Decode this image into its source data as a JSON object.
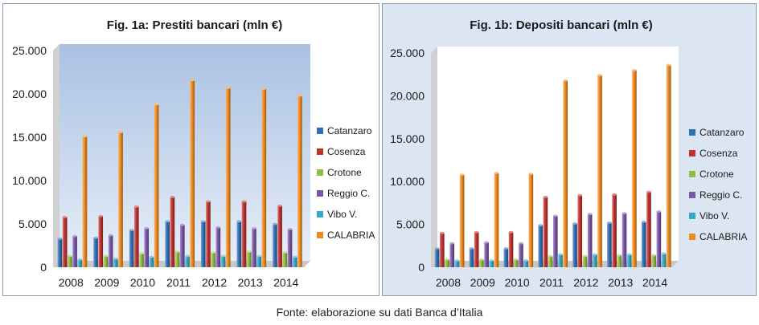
{
  "chart_data": [
    {
      "type": "bar",
      "title": "Fig. 1a: Prestiti bancari (mln €)",
      "categories": [
        "2008",
        "2009",
        "2010",
        "2011",
        "2012",
        "2013",
        "2014"
      ],
      "y_ticks": [
        "0",
        "5.000",
        "10.000",
        "15.000",
        "20.000",
        "25.000"
      ],
      "ylim": [
        0,
        25000
      ],
      "grid": false,
      "legend": "right",
      "series": [
        {
          "name": "Catanzaro",
          "color": "#2f6fb4",
          "values": [
            3300,
            3400,
            4300,
            5300,
            5300,
            5300,
            5000
          ]
        },
        {
          "name": "Cosenza",
          "color": "#c0312e",
          "values": [
            5800,
            5900,
            7000,
            8100,
            7600,
            7600,
            7100
          ]
        },
        {
          "name": "Crotone",
          "color": "#8fbf3e",
          "values": [
            1300,
            1300,
            1600,
            1800,
            1700,
            1800,
            1700
          ]
        },
        {
          "name": "Reggio C.",
          "color": "#7a55a8",
          "values": [
            3600,
            3700,
            4500,
            4900,
            4600,
            4500,
            4400
          ]
        },
        {
          "name": "Vibo V.",
          "color": "#35a9c8",
          "values": [
            900,
            1000,
            1200,
            1300,
            1300,
            1300,
            1200
          ]
        },
        {
          "name": "CALABRIA",
          "color": "#f08a1c",
          "values": [
            15100,
            15600,
            18800,
            21600,
            20700,
            20600,
            19800
          ]
        }
      ]
    },
    {
      "type": "bar",
      "title": "Fig. 1b: Depositi bancari (mln €)",
      "categories": [
        "2008",
        "2009",
        "2010",
        "2011",
        "2012",
        "2013",
        "2014"
      ],
      "y_ticks": [
        "0",
        "5.000",
        "10.000",
        "15.000",
        "20.000",
        "25.000"
      ],
      "ylim": [
        0,
        25000
      ],
      "grid": false,
      "legend": "right",
      "series": [
        {
          "name": "Catanzaro",
          "color": "#2f6fb4",
          "values": [
            2200,
            2200,
            2200,
            4900,
            5100,
            5200,
            5300
          ]
        },
        {
          "name": "Cosenza",
          "color": "#c0312e",
          "values": [
            4000,
            4100,
            4100,
            8200,
            8400,
            8500,
            8800
          ]
        },
        {
          "name": "Crotone",
          "color": "#8fbf3e",
          "values": [
            900,
            900,
            900,
            1300,
            1300,
            1400,
            1400
          ]
        },
        {
          "name": "Reggio C.",
          "color": "#7a55a8",
          "values": [
            2800,
            2900,
            2800,
            6000,
            6200,
            6300,
            6500
          ]
        },
        {
          "name": "Vibo V.",
          "color": "#35a9c8",
          "values": [
            800,
            800,
            800,
            1500,
            1500,
            1500,
            1600
          ]
        },
        {
          "name": "CALABRIA",
          "color": "#f08a1c",
          "values": [
            10800,
            11000,
            10900,
            21800,
            22400,
            23000,
            23600
          ]
        }
      ]
    }
  ],
  "footer": {
    "source": "Fonte: elaborazione su dati Banca d’Italia"
  }
}
